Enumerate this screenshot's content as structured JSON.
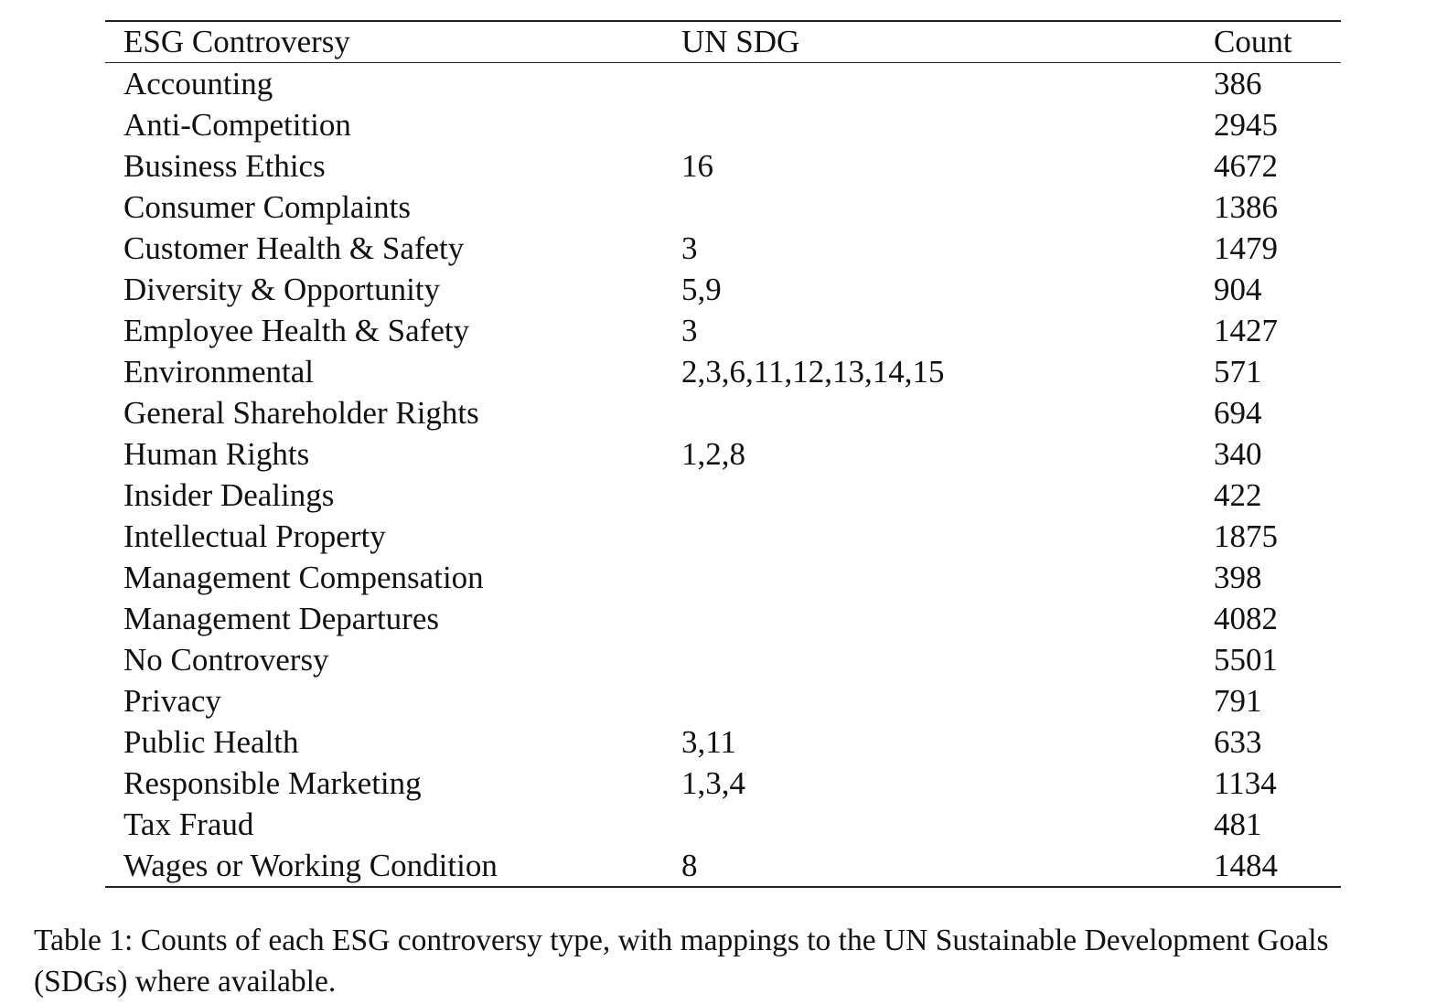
{
  "table": {
    "headers": [
      "ESG Controversy",
      "UN SDG",
      "Count"
    ],
    "rows": [
      [
        "Accounting",
        "",
        "386"
      ],
      [
        "Anti-Competition",
        "",
        "2945"
      ],
      [
        "Business Ethics",
        "16",
        "4672"
      ],
      [
        "Consumer Complaints",
        "",
        "1386"
      ],
      [
        "Customer Health & Safety",
        "3",
        "1479"
      ],
      [
        "Diversity & Opportunity",
        "5,9",
        "904"
      ],
      [
        "Employee Health & Safety",
        "3",
        "1427"
      ],
      [
        "Environmental",
        "2,3,6,11,12,13,14,15",
        "571"
      ],
      [
        "General Shareholder Rights",
        "",
        "694"
      ],
      [
        "Human Rights",
        "1,2,8",
        "340"
      ],
      [
        "Insider Dealings",
        "",
        "422"
      ],
      [
        "Intellectual Property",
        "",
        "1875"
      ],
      [
        "Management Compensation",
        "",
        "398"
      ],
      [
        "Management Departures",
        "",
        "4082"
      ],
      [
        "No Controversy",
        "",
        "5501"
      ],
      [
        "Privacy",
        "",
        "791"
      ],
      [
        "Public Health",
        "3,11",
        "633"
      ],
      [
        "Responsible Marketing",
        "1,3,4",
        "1134"
      ],
      [
        "Tax Fraud",
        "",
        "481"
      ],
      [
        "Wages or Working Condition",
        "8",
        "1484"
      ]
    ]
  },
  "caption": {
    "line1": "Table 1: Counts of each ESG controversy type, with mappings to the UN Sustainable Development Goals",
    "line2": "(SDGs) where available."
  }
}
